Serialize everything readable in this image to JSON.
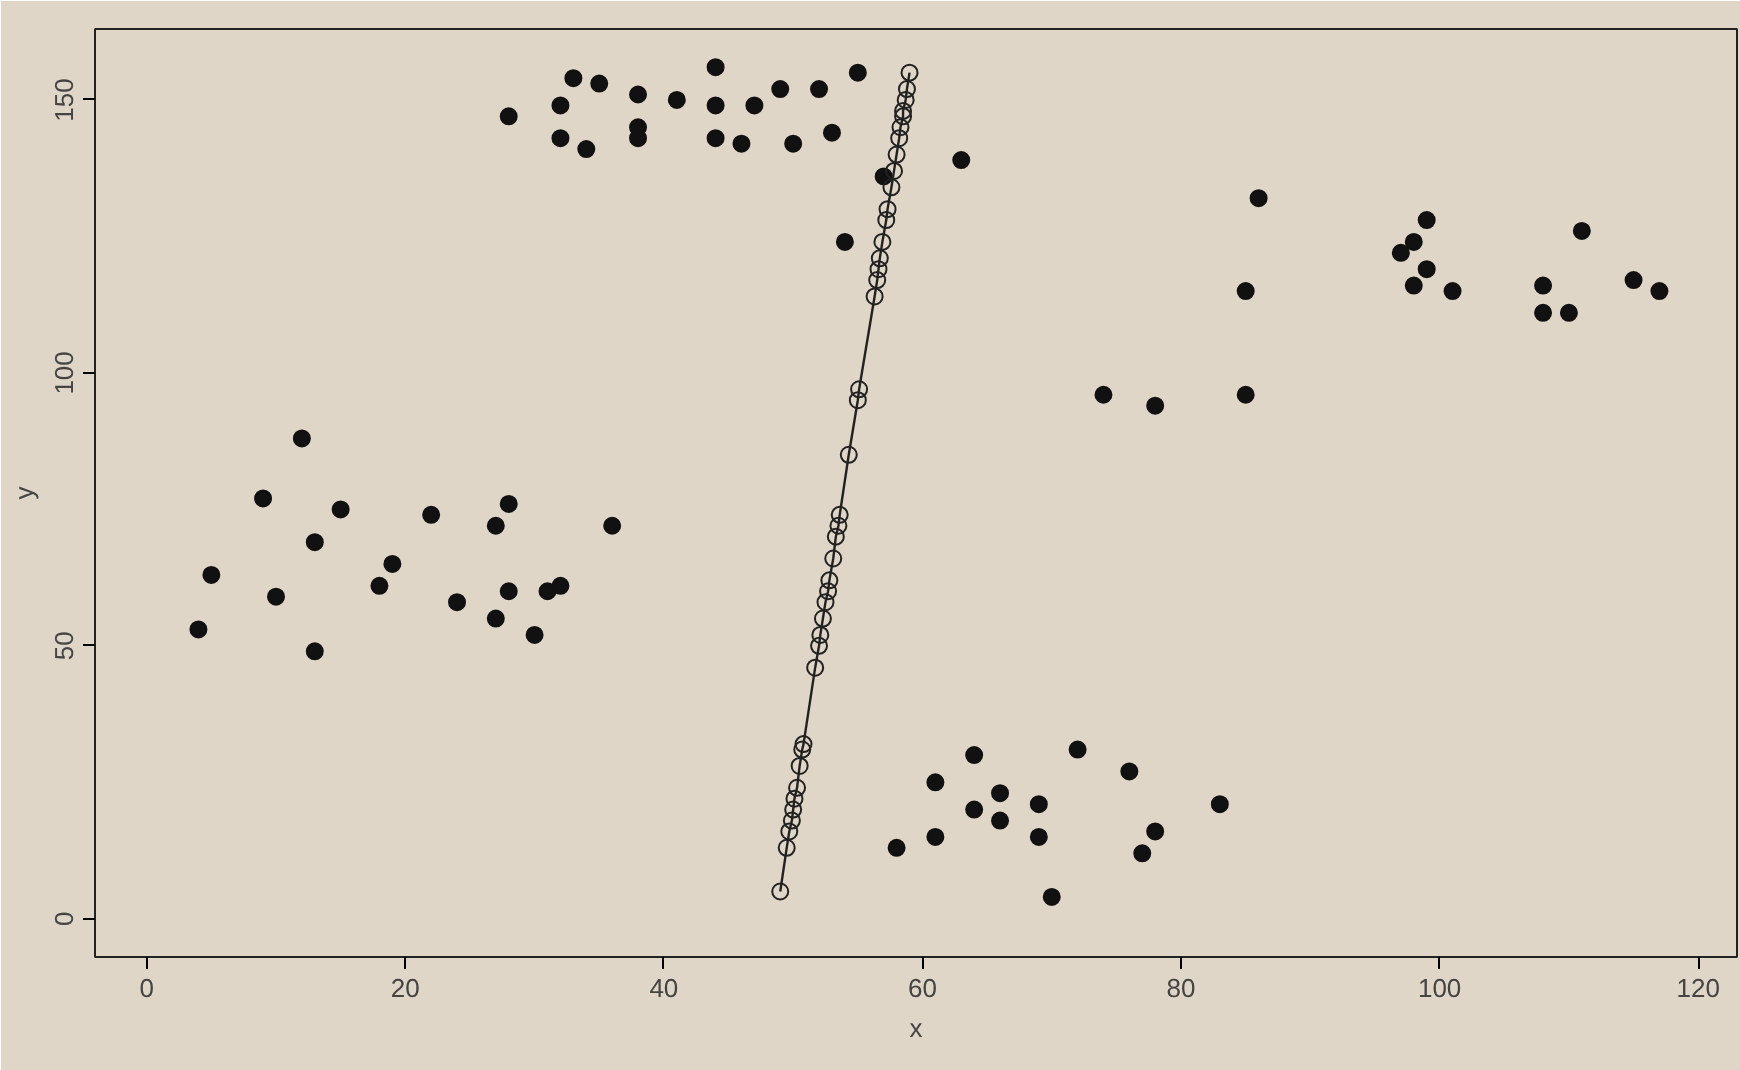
{
  "chart_data": {
    "type": "scatter",
    "xlabel": "x",
    "ylabel": "y",
    "xlim": [
      -4,
      123
    ],
    "ylim": [
      -7,
      163
    ],
    "xticks": [
      0,
      20,
      40,
      60,
      80,
      100,
      120
    ],
    "yticks": [
      0,
      50,
      100,
      150
    ],
    "grid": false,
    "marker": "circle",
    "series": [
      {
        "color": "#111111",
        "x": [
          4,
          5,
          9,
          10,
          12,
          13,
          13,
          15,
          18,
          19,
          22,
          24,
          27,
          27,
          28,
          28,
          30,
          31,
          32,
          36,
          28,
          32,
          32,
          33,
          34,
          35,
          38,
          38,
          38,
          41,
          44,
          44,
          44,
          46,
          47,
          49,
          50,
          52,
          53,
          55,
          54,
          57,
          63,
          58,
          61,
          61,
          64,
          64,
          66,
          66,
          69,
          69,
          70,
          72,
          76,
          77,
          78,
          83,
          74,
          78,
          85,
          85,
          86,
          97,
          98,
          99,
          98,
          99,
          101,
          108,
          108,
          110,
          111,
          115,
          117
        ],
        "values": [
          53,
          63,
          77,
          59,
          88,
          69,
          49,
          75,
          61,
          65,
          74,
          58,
          55,
          72,
          76,
          60,
          52,
          60,
          61,
          72,
          147,
          149,
          143,
          154,
          141,
          153,
          145,
          143,
          151,
          150,
          156,
          149,
          143,
          142,
          149,
          152,
          142,
          152,
          144,
          155,
          124,
          136,
          139,
          13,
          25,
          15,
          30,
          20,
          23,
          18,
          21,
          15,
          4,
          31,
          27,
          12,
          16,
          21,
          96,
          94,
          115,
          96,
          132,
          122,
          124,
          128,
          116,
          119,
          115,
          116,
          111,
          111,
          126,
          117,
          115
        ]
      },
      {
        "type": "line",
        "color": "#222222",
        "x": [
          49.0,
          49.5,
          49.7,
          49.9,
          50.0,
          50.1,
          50.3,
          50.5,
          50.7,
          50.8,
          51.7,
          52.0,
          52.1,
          52.3,
          52.5,
          52.7,
          52.8,
          53.1,
          53.3,
          53.5,
          53.6,
          54.3,
          55.0,
          55.1,
          56.3,
          56.5,
          56.6,
          56.7,
          56.9,
          57.2,
          57.3,
          57.6,
          57.8,
          58.0,
          58.2,
          58.3,
          58.5,
          58.5,
          58.7,
          58.8,
          59.0
        ],
        "values": [
          5,
          13,
          16,
          18,
          20,
          22,
          24,
          28,
          31,
          32,
          46,
          50,
          52,
          55,
          58,
          60,
          62,
          66,
          70,
          72,
          74,
          85,
          95,
          97,
          114,
          117,
          119,
          121,
          124,
          128,
          130,
          134,
          137,
          140,
          143,
          145,
          147,
          148,
          150,
          152,
          155
        ]
      }
    ]
  }
}
